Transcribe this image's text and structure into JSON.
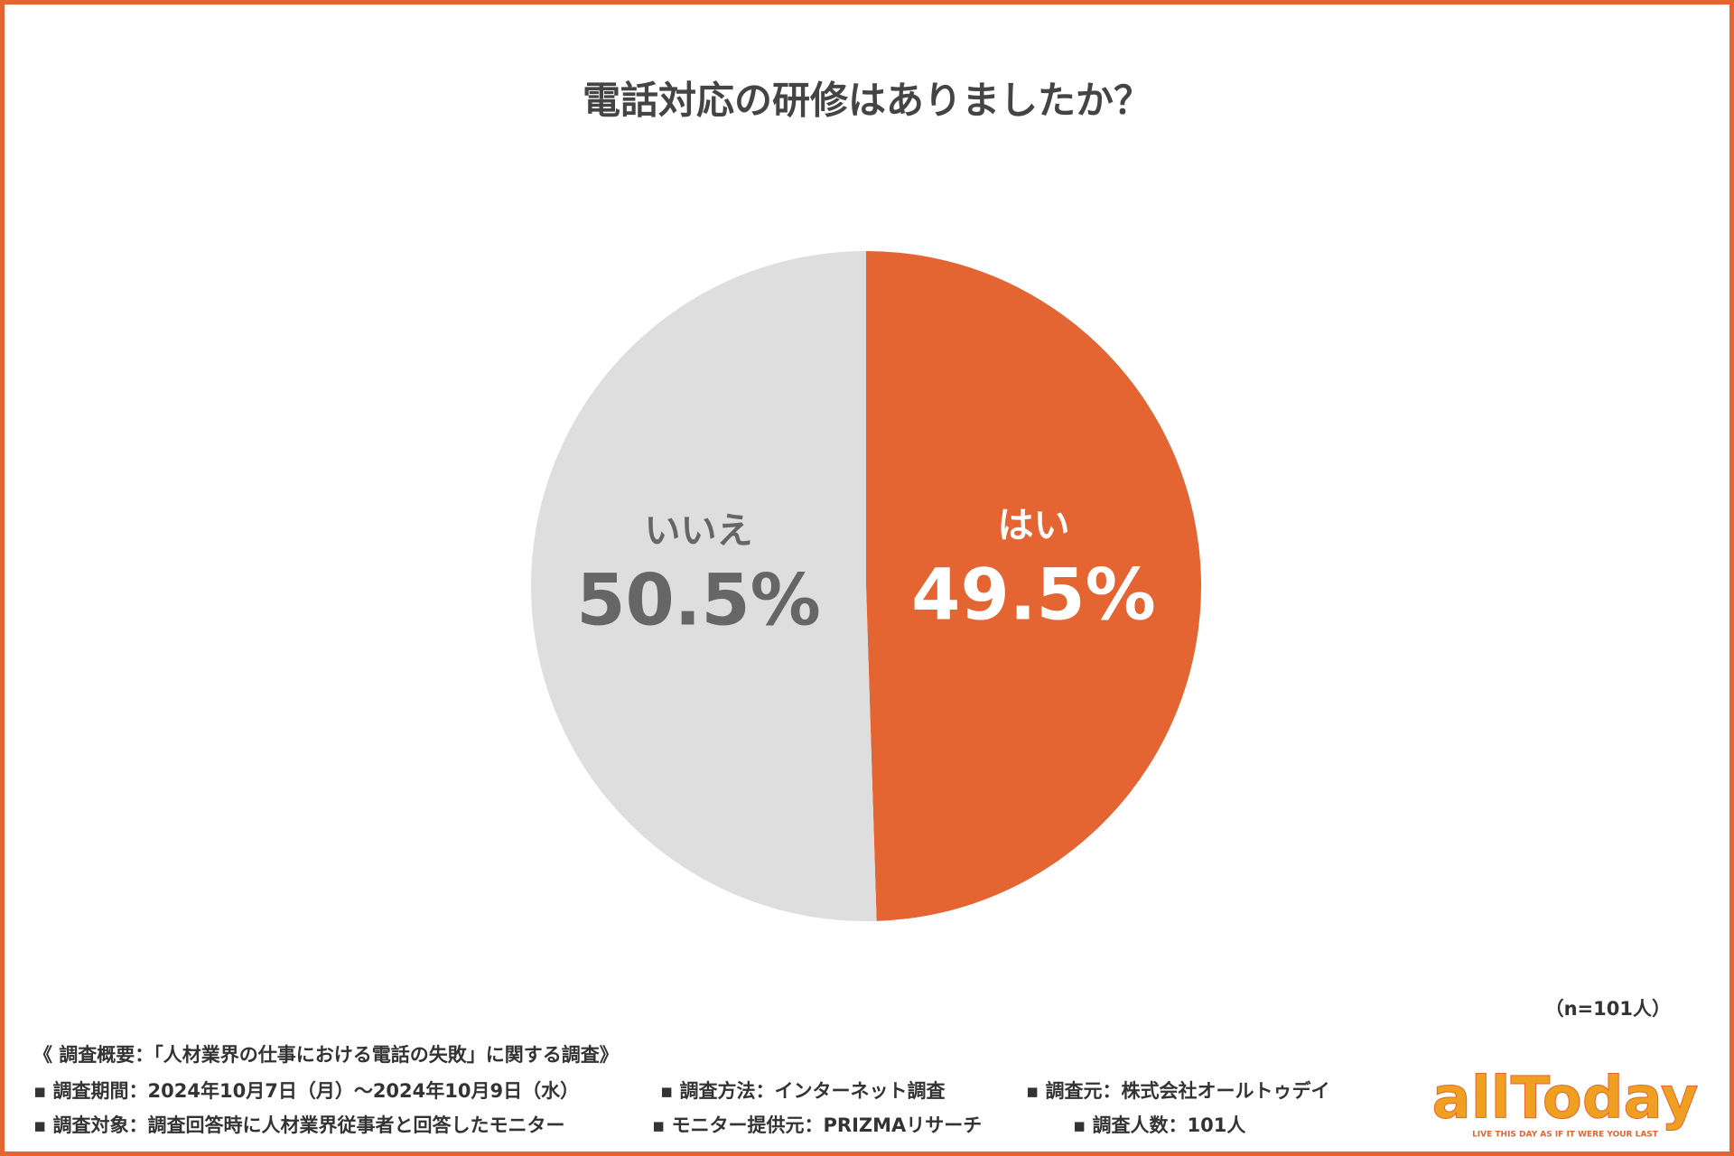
{
  "chart_data": {
    "type": "pie",
    "title": "電話対応の研修はありましたか？",
    "categories": [
      "はい",
      "いいえ"
    ],
    "values": [
      49.5,
      50.5
    ],
    "value_labels": [
      "49.5%",
      "50.5%"
    ],
    "colors": [
      "#e46432",
      "#dedede"
    ]
  },
  "notes": {
    "sample": "（n=101人）",
    "heading": "《 調査概要：「人材業界の仕事における電話の失敗」に関する調査》",
    "items": [
      "▪ 調査期間：2024年10月7日（月）～2024年10月9日（水）",
      "▪ 調査方法：インターネット調査",
      "▪ 調査元：株式会社オールトゥデイ",
      "▪ 調査対象：調査回答時に人材業界従事者と回答したモニター",
      "▪ モニター提供元：PRIZMAリサーチ",
      "▪ 調査人数：101人"
    ]
  },
  "logo": {
    "name": "allToday",
    "tagline": "LIVE THIS DAY AS IF IT WERE YOUR LAST"
  }
}
